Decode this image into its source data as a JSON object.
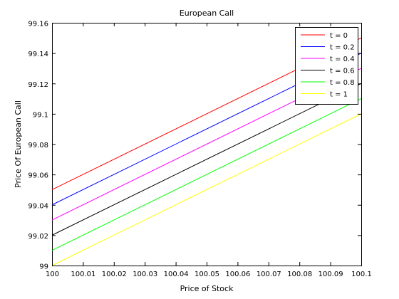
{
  "chart_data": {
    "type": "line",
    "title": "European Call",
    "xlabel": "Price of Stock",
    "ylabel": "Price Of European Call",
    "xlim": [
      100,
      100.1
    ],
    "ylim": [
      99,
      99.16
    ],
    "x_ticks": [
      "100",
      "100.01",
      "100.02",
      "100.03",
      "100.04",
      "100.05",
      "100.06",
      "100.07",
      "100.08",
      "100.09",
      "100.1"
    ],
    "y_ticks": [
      "99",
      "99.02",
      "99.04",
      "99.06",
      "99.08",
      "99.1",
      "99.12",
      "99.14",
      "99.16"
    ],
    "grid": false,
    "legend_position": "top-right",
    "x": [
      100,
      100.1
    ],
    "series": [
      {
        "name": "t = 0",
        "color": "#ff0000",
        "values": [
          99.05,
          99.15
        ]
      },
      {
        "name": "t = 0.2",
        "color": "#0000ff",
        "values": [
          99.04,
          99.14
        ]
      },
      {
        "name": "t = 0.4",
        "color": "#ff00ff",
        "values": [
          99.03,
          99.13
        ]
      },
      {
        "name": "t = 0.6",
        "color": "#000000",
        "values": [
          99.02,
          99.12
        ]
      },
      {
        "name": "t = 0.8",
        "color": "#00ff00",
        "values": [
          99.01,
          99.11
        ]
      },
      {
        "name": "t = 1",
        "color": "#ffff00",
        "values": [
          99.0,
          99.1
        ]
      }
    ]
  }
}
